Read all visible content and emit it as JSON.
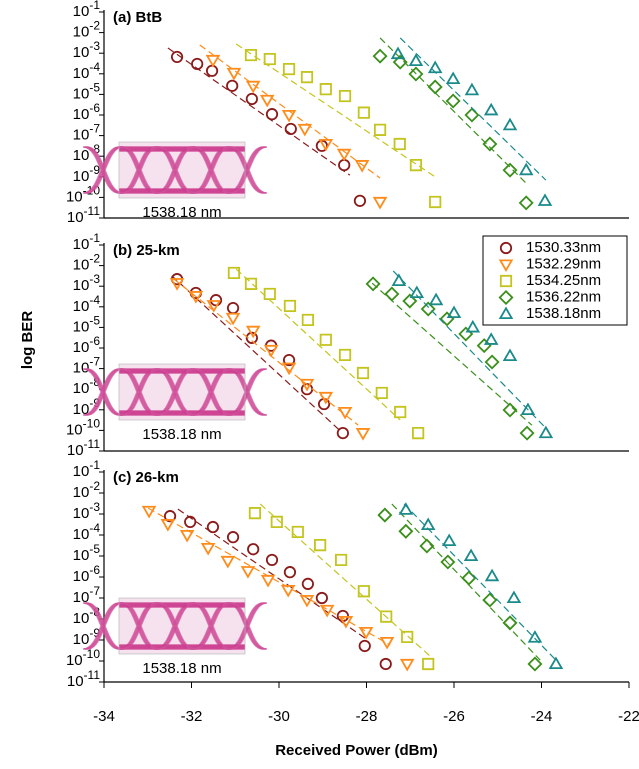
{
  "chart_data": [
    {
      "type": "scatter",
      "title": "(a) BtB",
      "log_y": true,
      "inset_label": "1538.18 nm",
      "xlim": [
        -34,
        -22
      ],
      "ylim": [
        1e-11,
        0.1
      ],
      "yticks": [
        {
          "value": 0.1,
          "label": "10-1"
        },
        {
          "value": 0.01,
          "label": "10-2"
        },
        {
          "value": 0.001,
          "label": "10-3"
        },
        {
          "value": 0.0001,
          "label": "10-4"
        },
        {
          "value": 1e-05,
          "label": "10-5"
        },
        {
          "value": 1e-06,
          "label": "10-6"
        },
        {
          "value": 1e-07,
          "label": "10-7"
        },
        {
          "value": 1e-08,
          "label": "10-8"
        },
        {
          "value": 1e-09,
          "label": "10-9"
        },
        {
          "value": 1e-10,
          "label": "10-10"
        },
        {
          "value": 1e-11,
          "label": "10-11"
        }
      ],
      "series": [
        {
          "color": "#8b1a1a",
          "marker": "o",
          "x": [
            -32.33,
            -31.87,
            -31.53,
            -31.07,
            -30.62,
            -30.16,
            -29.73,
            -29.02,
            -28.51,
            -28.15
          ],
          "values": [
            0.00066,
            0.0003,
            0.00014,
            2.6e-05,
            6e-06,
            1.1e-06,
            2.1e-07,
            3.2e-08,
            3.7e-09,
            6.8e-11
          ],
          "fit_x": [
            -32.54,
            -28.38
          ],
          "fit_values": [
            0.0018,
            1.2e-09
          ]
        },
        {
          "color": "#ff8c1a",
          "marker": "v",
          "x": [
            -31.51,
            -31.03,
            -30.59,
            -30.27,
            -29.77,
            -29.41,
            -28.93,
            -28.51,
            -28.1,
            -27.69
          ],
          "values": [
            0.00047,
            0.00011,
            2.6e-05,
            5.4e-06,
            1e-06,
            2.1e-07,
            3.9e-08,
            1.3e-08,
            3.7e-09,
            6e-11
          ],
          "fit_x": [
            -31.81,
            -27.69
          ],
          "fit_values": [
            0.0025,
            8.7e-10
          ]
        },
        {
          "color": "#c4c41e",
          "marker": "s",
          "x": [
            -30.64,
            -30.21,
            -29.77,
            -29.36,
            -28.93,
            -28.49,
            -28.06,
            -27.69,
            -27.24,
            -26.87,
            -26.43
          ],
          "values": [
            0.00081,
            0.00052,
            0.00017,
            6.9e-05,
            1.8e-05,
            8.3e-06,
            1.3e-06,
            1.9e-07,
            3.9e-08,
            3.7e-09,
            6e-11
          ],
          "fit_x": [
            -30.98,
            -26.39
          ],
          "fit_values": [
            0.0028,
            8.7e-10
          ]
        },
        {
          "color": "#3a8f1a",
          "marker": "D",
          "x": [
            -27.69,
            -27.23,
            -26.87,
            -26.43,
            -26.02,
            -25.59,
            -25.18,
            -24.72,
            -24.35
          ],
          "values": [
            0.00072,
            0.00037,
            9.8e-05,
            2.3e-05,
            4.8e-06,
            1e-06,
            3.9e-08,
            2.1e-09,
            5.4e-11
          ],
          "fit_x": [
            -27.69,
            -24.31
          ],
          "fit_values": [
            0.0055,
            4e-10
          ]
        },
        {
          "color": "#1a8a8a",
          "marker": "^",
          "x": [
            -27.28,
            -26.87,
            -26.43,
            -26.02,
            -25.59,
            -25.15,
            -24.72,
            -24.35,
            -23.92
          ],
          "values": [
            0.00091,
            0.00042,
            0.00019,
            5.6e-05,
            1.6e-05,
            1.7e-06,
            3.2e-07,
            2.1e-09,
            6.8e-11
          ],
          "fit_x": [
            -27.23,
            -23.9
          ],
          "fit_values": [
            0.0055,
            6.9e-10
          ]
        }
      ]
    },
    {
      "type": "scatter",
      "title": "(b) 25-km",
      "log_y": true,
      "inset_label": "1538.18 nm",
      "ylabel": "log BER",
      "legend": "upper right",
      "xlim": [
        -34,
        -22
      ],
      "ylim": [
        1e-11,
        0.1
      ],
      "yticks": [
        {
          "value": 0.1,
          "label": "10-1"
        },
        {
          "value": 0.01,
          "label": "10-2"
        },
        {
          "value": 0.001,
          "label": "10-3"
        },
        {
          "value": 0.0001,
          "label": "10-4"
        },
        {
          "value": 1e-05,
          "label": "10-5"
        },
        {
          "value": 1e-06,
          "label": "10-6"
        },
        {
          "value": 1e-07,
          "label": "10-7"
        },
        {
          "value": 1e-08,
          "label": "10-8"
        },
        {
          "value": 1e-09,
          "label": "10-9"
        },
        {
          "value": 1e-10,
          "label": "10-10"
        },
        {
          "value": 1e-11,
          "label": "10-11"
        }
      ],
      "series": [
        {
          "name": "1530.33nm",
          "color": "#8b1a1a",
          "marker": "o",
          "x": [
            -32.33,
            -31.9,
            -31.44,
            -31.05,
            -30.62,
            -30.18,
            -29.77,
            -29.36,
            -28.97,
            -28.54
          ],
          "values": [
            0.0022,
            0.00047,
            0.00021,
            8.7e-05,
            3.1e-06,
            1.3e-06,
            2.6e-07,
            1e-08,
            1.9e-09,
            7.4e-11
          ],
          "fit_x": [
            -32.45,
            -28.61
          ],
          "fit_values": [
            0.0032,
            1e-10
          ]
        },
        {
          "name": "1532.29nm",
          "color": "#ff8c1a",
          "marker": "v",
          "x": [
            -32.33,
            -31.9,
            -31.49,
            -31.05,
            -30.59,
            -30.18,
            -29.77,
            -29.36,
            -28.93,
            -28.49,
            -28.08
          ],
          "values": [
            0.0014,
            0.00033,
            0.00012,
            2.9e-05,
            6.8e-06,
            8e-07,
            1.1e-07,
            1.8e-08,
            4.2e-09,
            7.8e-10,
            7.4e-11
          ],
          "fit_x": [
            -32.4,
            -28.19
          ],
          "fit_values": [
            0.0022,
            1.8e-10
          ]
        },
        {
          "name": "1534.25nm",
          "color": "#c4c41e",
          "marker": "s",
          "x": [
            -31.03,
            -30.64,
            -30.21,
            -29.75,
            -29.34,
            -28.93,
            -28.49,
            -28.08,
            -27.65,
            -27.23,
            -26.82
          ],
          "values": [
            0.0044,
            0.0013,
            0.00042,
            0.00011,
            2.3e-05,
            2.5e-06,
            4.6e-07,
            6.1e-08,
            6.6e-09,
            7.8e-10,
            7.4e-11
          ],
          "fit_x": [
            -30.98,
            -27.23
          ],
          "fit_values": [
            0.0068,
            3.2e-10
          ]
        },
        {
          "name": "1536.22nm",
          "color": "#3a8f1a",
          "marker": "D",
          "x": [
            -27.85,
            -27.42,
            -27.01,
            -26.59,
            -26.16,
            -25.73,
            -25.31,
            -25.13,
            -24.72,
            -24.33
          ],
          "values": [
            0.0013,
            0.00042,
            0.00019,
            7.8e-05,
            2.6e-05,
            4.8e-06,
            1.3e-06,
            2.1e-07,
            9.8e-10,
            7.4e-11
          ],
          "fit_x": [
            -27.87,
            -24.22
          ],
          "fit_values": [
            0.0014,
            1.8e-10
          ]
        },
        {
          "name": "1538.18nm",
          "color": "#1a8a8a",
          "marker": "^",
          "x": [
            -27.26,
            -26.85,
            -26.41,
            -26.0,
            -25.57,
            -25.15,
            -24.72,
            -24.31,
            -23.9
          ],
          "values": [
            0.0018,
            0.00047,
            0.00021,
            5e-05,
            1e-05,
            2.5e-06,
            4.1e-07,
            9.8e-10,
            7.4e-11
          ],
          "fit_x": [
            -27.39,
            -23.85
          ],
          "fit_values": [
            0.0055,
            1e-10
          ]
        }
      ]
    },
    {
      "type": "scatter",
      "title": "(c) 26-km",
      "log_y": true,
      "inset_label": "1538.18 nm",
      "xlabel": "Received Power (dBm)",
      "xlim": [
        -34,
        -22
      ],
      "xticks": [
        -34,
        -32,
        -30,
        -28,
        -26,
        -24,
        -22
      ],
      "ylim": [
        1e-11,
        0.1
      ],
      "yticks": [
        {
          "value": 0.1,
          "label": "10-1"
        },
        {
          "value": 0.01,
          "label": "10-2"
        },
        {
          "value": 0.001,
          "label": "10-3"
        },
        {
          "value": 0.0001,
          "label": "10-4"
        },
        {
          "value": 1e-05,
          "label": "10-5"
        },
        {
          "value": 1e-06,
          "label": "10-6"
        },
        {
          "value": 1e-07,
          "label": "10-7"
        },
        {
          "value": 1e-08,
          "label": "10-8"
        },
        {
          "value": 1e-09,
          "label": "10-9"
        },
        {
          "value": 1e-10,
          "label": "10-10"
        },
        {
          "value": 1e-11,
          "label": "10-11"
        }
      ],
      "series": [
        {
          "color": "#8b1a1a",
          "marker": "o",
          "x": [
            -32.49,
            -32.03,
            -31.51,
            -31.05,
            -30.59,
            -30.16,
            -29.75,
            -29.34,
            -29.02,
            -28.54,
            -28.04,
            -27.56
          ],
          "values": [
            0.00079,
            0.00042,
            0.00024,
            7.9e-05,
            2.1e-05,
            6.5e-06,
            1.7e-06,
            4.7e-07,
            1e-07,
            1.4e-08,
            5.2e-10,
            7.2e-11
          ],
          "fit_x": [
            -32.31,
            -27.97
          ],
          "fit_values": [
            0.0017,
            1e-09
          ]
        },
        {
          "color": "#ff8c1a",
          "marker": "v",
          "x": [
            -32.97,
            -32.54,
            -32.1,
            -31.62,
            -31.17,
            -30.71,
            -30.25,
            -29.79,
            -29.36,
            -28.9,
            -28.47,
            -28.01,
            -27.53,
            -27.07
          ],
          "values": [
            0.0014,
            0.00033,
            0.0001,
            2.4e-05,
            5.8e-06,
            1.9e-06,
            7.2e-07,
            2.4e-07,
            8e-08,
            2.7e-08,
            8e-09,
            2.4e-09,
            8e-10,
            7.2e-11
          ],
          "fit_x": [
            -32.99,
            -27.46
          ],
          "fit_values": [
            0.0019,
            5.8e-10
          ]
        },
        {
          "color": "#c4c41e",
          "marker": "s",
          "x": [
            -30.55,
            -30.05,
            -29.57,
            -29.06,
            -28.58,
            -28.06,
            -27.55,
            -27.07,
            -26.59
          ],
          "values": [
            0.0011,
            0.00042,
            0.00014,
            3.3e-05,
            6.5e-06,
            2.1e-07,
            1.3e-08,
            1.4e-09,
            7.2e-11
          ],
          "fit_x": [
            -30.43,
            -26.5
          ],
          "fit_values": [
            0.003,
            1.4e-10
          ]
        },
        {
          "color": "#3a8f1a",
          "marker": "D",
          "x": [
            -27.58,
            -27.1,
            -26.62,
            -26.14,
            -25.66,
            -25.18,
            -24.72,
            -24.15
          ],
          "values": [
            0.00089,
            0.00015,
            3e-05,
            5.2e-06,
            8.9e-07,
            8e-08,
            6.5e-09,
            7.2e-11
          ],
          "fit_x": [
            -27.42,
            -24.03
          ],
          "fit_values": [
            0.003,
            1.1e-10
          ]
        },
        {
          "color": "#1a8a8a",
          "marker": "^",
          "x": [
            -27.1,
            -26.59,
            -26.11,
            -25.61,
            -25.13,
            -24.63,
            -24.15,
            -23.67
          ],
          "values": [
            0.0016,
            0.0003,
            5.2e-05,
            1e-05,
            1.1e-06,
            1e-07,
            1.3e-09,
            7.2e-11
          ],
          "fit_x": [
            -27.14,
            -23.67
          ],
          "fit_values": [
            0.003,
            1.1e-10
          ]
        }
      ]
    }
  ]
}
